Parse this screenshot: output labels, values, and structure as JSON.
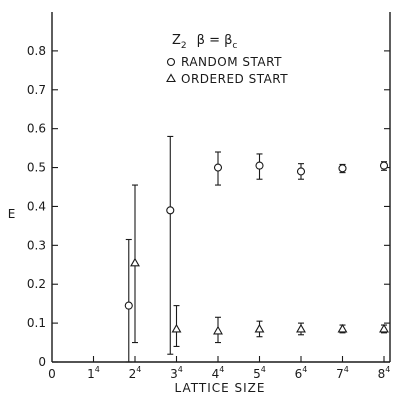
{
  "chart_data": {
    "type": "scatter",
    "title": "Z",
    "title_subscript": "2",
    "title_beta": "β = β",
    "title_beta_subscript": "c",
    "xlabel": "LATTICE SIZE",
    "ylabel": "E",
    "xlim": [
      0,
      9
    ],
    "ylim": [
      0,
      0.9
    ],
    "x_ticks": [
      {
        "value": 0,
        "base": "0",
        "exp": ""
      },
      {
        "value": 1,
        "base": "1",
        "exp": "4"
      },
      {
        "value": 2,
        "base": "2",
        "exp": "4"
      },
      {
        "value": 3,
        "base": "3",
        "exp": "4"
      },
      {
        "value": 4,
        "base": "4",
        "exp": "4"
      },
      {
        "value": 5,
        "base": "5",
        "exp": "4"
      },
      {
        "value": 6,
        "base": "6",
        "exp": "4"
      },
      {
        "value": 7,
        "base": "7",
        "exp": "4"
      },
      {
        "value": 8,
        "base": "8",
        "exp": "4"
      }
    ],
    "y_ticks": [
      "0",
      "0.1",
      "0.2",
      "0.3",
      "0.4",
      "0.5",
      "0.6",
      "0.7",
      "0.8"
    ],
    "legend_placement": "top-center",
    "series": [
      {
        "name": "RANDOM START",
        "marker": "circle",
        "points": [
          {
            "x": 1.85,
            "y": 0.145,
            "lo": 0.0,
            "hi": 0.315
          },
          {
            "x": 2.85,
            "y": 0.39,
            "lo": 0.02,
            "hi": 0.58
          },
          {
            "x": 4.0,
            "y": 0.5,
            "lo": 0.455,
            "hi": 0.54
          },
          {
            "x": 5.0,
            "y": 0.505,
            "lo": 0.47,
            "hi": 0.535
          },
          {
            "x": 6.0,
            "y": 0.49,
            "lo": 0.47,
            "hi": 0.51
          },
          {
            "x": 7.0,
            "y": 0.498,
            "lo": 0.487,
            "hi": 0.508
          },
          {
            "x": 8.0,
            "y": 0.505,
            "lo": 0.493,
            "hi": 0.515
          }
        ]
      },
      {
        "name": "ORDERED START",
        "marker": "triangle",
        "points": [
          {
            "x": 2.0,
            "y": 0.255,
            "lo": 0.05,
            "hi": 0.455
          },
          {
            "x": 3.0,
            "y": 0.085,
            "lo": 0.04,
            "hi": 0.145
          },
          {
            "x": 4.0,
            "y": 0.08,
            "lo": 0.05,
            "hi": 0.115
          },
          {
            "x": 5.0,
            "y": 0.085,
            "lo": 0.065,
            "hi": 0.105
          },
          {
            "x": 6.0,
            "y": 0.085,
            "lo": 0.07,
            "hi": 0.1
          },
          {
            "x": 7.0,
            "y": 0.085,
            "lo": 0.075,
            "hi": 0.095
          },
          {
            "x": 8.0,
            "y": 0.085,
            "lo": 0.075,
            "hi": 0.095
          }
        ]
      }
    ]
  }
}
